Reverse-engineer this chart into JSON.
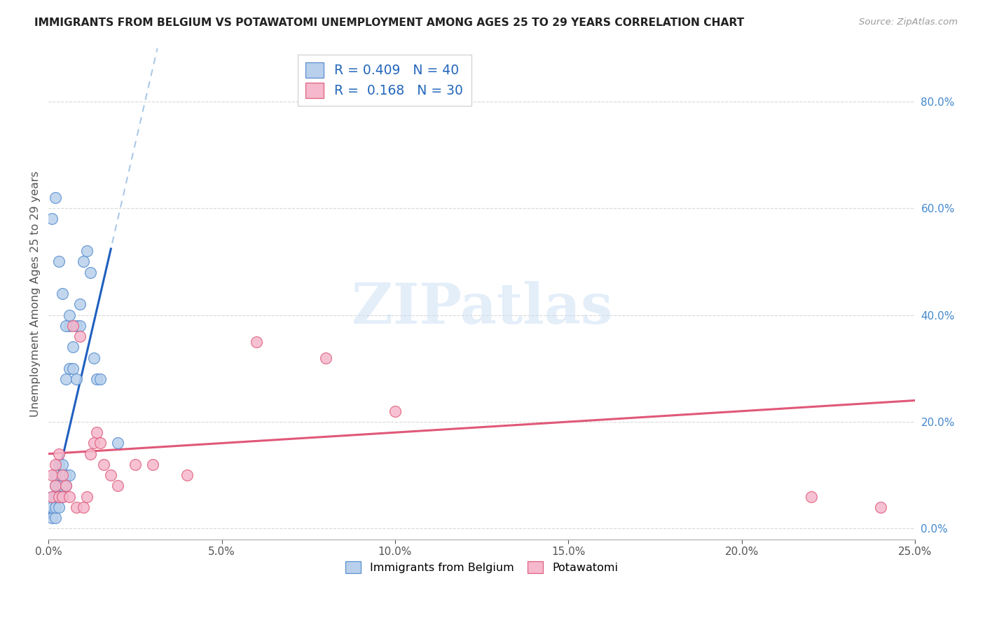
{
  "title": "IMMIGRANTS FROM BELGIUM VS POTAWATOMI UNEMPLOYMENT AMONG AGES 25 TO 29 YEARS CORRELATION CHART",
  "source": "Source: ZipAtlas.com",
  "ylabel": "Unemployment Among Ages 25 to 29 years",
  "xlim": [
    0.0,
    0.25
  ],
  "ylim": [
    -0.02,
    0.9
  ],
  "blue_R": 0.409,
  "blue_N": 40,
  "pink_R": 0.168,
  "pink_N": 30,
  "blue_fill": "#b8d0ec",
  "pink_fill": "#f5b8cc",
  "blue_edge": "#5a8fd0",
  "pink_edge": "#e06080",
  "trend_blue": "#2060c0",
  "trend_pink": "#e05878",
  "dashed_blue": "#90b8e0",
  "watermark_color": "#cce0f5",
  "blue_scatter_x": [
    0.001,
    0.001,
    0.001,
    0.002,
    0.002,
    0.002,
    0.002,
    0.002,
    0.003,
    0.003,
    0.003,
    0.003,
    0.004,
    0.004,
    0.004,
    0.005,
    0.005,
    0.005,
    0.006,
    0.006,
    0.006,
    0.007,
    0.007,
    0.008,
    0.008,
    0.009,
    0.009,
    0.01,
    0.011,
    0.012,
    0.013,
    0.014,
    0.015,
    0.001,
    0.002,
    0.003,
    0.004,
    0.005,
    0.006,
    0.02
  ],
  "blue_scatter_y": [
    0.02,
    0.04,
    0.06,
    0.02,
    0.04,
    0.06,
    0.08,
    0.1,
    0.04,
    0.06,
    0.08,
    0.12,
    0.06,
    0.08,
    0.12,
    0.08,
    0.1,
    0.28,
    0.1,
    0.3,
    0.38,
    0.3,
    0.34,
    0.28,
    0.38,
    0.38,
    0.42,
    0.5,
    0.52,
    0.48,
    0.32,
    0.28,
    0.28,
    0.58,
    0.62,
    0.5,
    0.44,
    0.38,
    0.4,
    0.16
  ],
  "pink_scatter_x": [
    0.001,
    0.001,
    0.002,
    0.002,
    0.003,
    0.003,
    0.004,
    0.004,
    0.005,
    0.006,
    0.007,
    0.008,
    0.009,
    0.01,
    0.011,
    0.012,
    0.013,
    0.014,
    0.015,
    0.016,
    0.018,
    0.02,
    0.025,
    0.03,
    0.04,
    0.06,
    0.08,
    0.1,
    0.22,
    0.24
  ],
  "pink_scatter_y": [
    0.06,
    0.1,
    0.08,
    0.12,
    0.06,
    0.14,
    0.06,
    0.1,
    0.08,
    0.06,
    0.38,
    0.04,
    0.36,
    0.04,
    0.06,
    0.14,
    0.16,
    0.18,
    0.16,
    0.12,
    0.1,
    0.08,
    0.12,
    0.12,
    0.1,
    0.35,
    0.32,
    0.22,
    0.06,
    0.04
  ],
  "xtick_vals": [
    0.0,
    0.05,
    0.1,
    0.15,
    0.2,
    0.25
  ],
  "xtick_labels": [
    "0.0%",
    "5.0%",
    "10.0%",
    "15.0%",
    "20.0%",
    "25.0%"
  ],
  "ytick_right_vals": [
    0.0,
    0.2,
    0.4,
    0.6,
    0.8
  ],
  "ytick_right_labels": [
    "0.0%",
    "20.0%",
    "40.0%",
    "60.0%",
    "80.0%"
  ],
  "grid_color": "#d8d8d8",
  "blue_trend_intercept": 0.02,
  "blue_trend_slope": 28.0,
  "pink_trend_intercept": 0.14,
  "pink_trend_slope": 0.4
}
